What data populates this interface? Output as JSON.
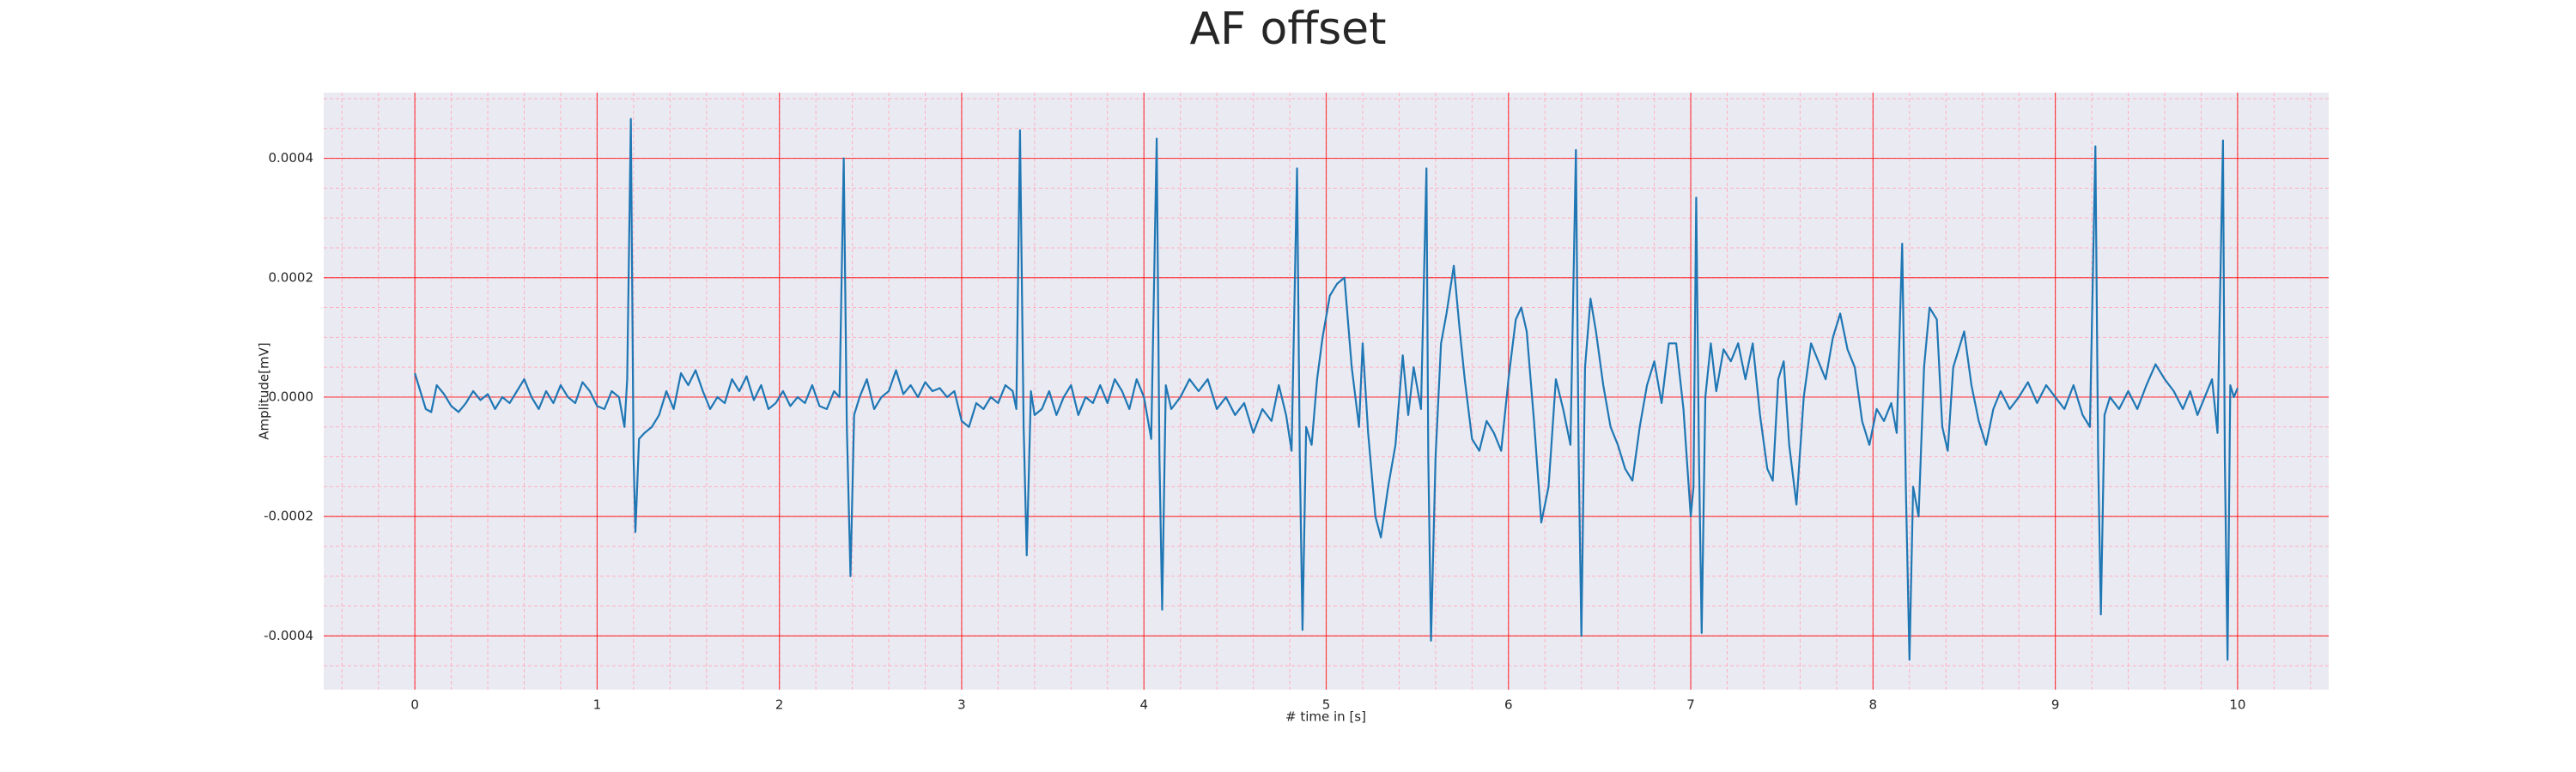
{
  "chart_data": {
    "type": "line",
    "title": "AF offset",
    "xlabel": "# time in [s]",
    "ylabel": "Amplitude[mV]",
    "xlim": [
      -0.5,
      10.5
    ],
    "ylim": [
      -0.00049,
      0.00051
    ],
    "xticks": [
      0,
      1,
      2,
      3,
      4,
      5,
      6,
      7,
      8,
      9,
      10
    ],
    "yticks": [
      -0.0004,
      -0.0002,
      {
        "value": 0,
        "label": "0.0000"
      },
      0.0002,
      0.0004
    ],
    "x_minor_ticks": [
      -0.4,
      -0.2,
      0,
      0.2,
      0.4,
      0.6,
      0.8,
      1,
      1.2,
      1.4,
      1.6,
      1.8,
      2,
      2.2,
      2.4,
      2.6,
      2.8,
      3,
      3.2,
      3.4,
      3.6,
      3.8,
      4,
      4.2,
      4.4,
      4.6,
      4.8,
      5,
      5.2,
      5.4,
      5.6,
      5.8,
      6,
      6.2,
      6.4,
      6.6,
      6.8,
      7,
      7.2,
      7.4,
      7.6,
      7.8,
      8,
      8.2,
      8.4,
      8.6,
      8.8,
      9,
      9.2,
      9.4,
      9.6,
      9.8,
      10,
      10.2,
      10.4
    ],
    "y_minor_ticks": [
      -0.00045,
      -0.0004,
      -0.00035,
      -0.0003,
      -0.00025,
      -0.0002,
      -0.00015,
      -0.0001,
      -5e-05,
      0,
      5e-05,
      0.0001,
      0.00015,
      0.0002,
      0.00025,
      0.0003,
      0.00035,
      0.0004,
      0.00045,
      0.0005
    ],
    "grid": true,
    "grid_color": "#ff0000",
    "minor_grid_color": "#ffb0c0",
    "background": "#eaeaf2",
    "color": "#1f77b4",
    "x": [
      0,
      0.03,
      0.06,
      0.09,
      0.12,
      0.16,
      0.2,
      0.24,
      0.28,
      0.32,
      0.36,
      0.4,
      0.44,
      0.48,
      0.52,
      0.56,
      0.6,
      0.64,
      0.68,
      0.72,
      0.76,
      0.8,
      0.84,
      0.88,
      0.92,
      0.96,
      1,
      1.04,
      1.08,
      1.12,
      1.15,
      1.165,
      1.185,
      1.2,
      1.21,
      1.23,
      1.26,
      1.3,
      1.34,
      1.38,
      1.42,
      1.46,
      1.5,
      1.54,
      1.58,
      1.62,
      1.66,
      1.7,
      1.74,
      1.78,
      1.82,
      1.86,
      1.9,
      1.94,
      1.98,
      2.02,
      2.06,
      2.1,
      2.14,
      2.18,
      2.22,
      2.26,
      2.3,
      2.33,
      2.353,
      2.37,
      2.39,
      2.41,
      2.44,
      2.48,
      2.52,
      2.56,
      2.6,
      2.64,
      2.68,
      2.72,
      2.76,
      2.8,
      2.84,
      2.88,
      2.92,
      2.96,
      3,
      3.04,
      3.08,
      3.12,
      3.16,
      3.2,
      3.24,
      3.28,
      3.3,
      3.32,
      3.34,
      3.357,
      3.38,
      3.4,
      3.44,
      3.48,
      3.52,
      3.56,
      3.6,
      3.64,
      3.68,
      3.72,
      3.76,
      3.8,
      3.84,
      3.88,
      3.92,
      3.96,
      4,
      4.04,
      4.07,
      4.085,
      4.1,
      4.12,
      4.15,
      4.2,
      4.25,
      4.3,
      4.35,
      4.4,
      4.45,
      4.5,
      4.55,
      4.6,
      4.65,
      4.7,
      4.74,
      4.78,
      4.81,
      4.84,
      4.855,
      4.87,
      4.89,
      4.92,
      4.95,
      4.98,
      5.02,
      5.06,
      5.1,
      5.14,
      5.18,
      5.2,
      5.23,
      5.27,
      5.3,
      5.34,
      5.38,
      5.42,
      5.45,
      5.48,
      5.52,
      5.55,
      5.56,
      5.575,
      5.6,
      5.63,
      5.66,
      5.7,
      5.73,
      5.76,
      5.8,
      5.84,
      5.88,
      5.92,
      5.96,
      6,
      6.04,
      6.07,
      6.1,
      6.14,
      6.18,
      6.22,
      6.26,
      6.3,
      6.34,
      6.37,
      6.385,
      6.4,
      6.42,
      6.45,
      6.48,
      6.52,
      6.56,
      6.6,
      6.64,
      6.68,
      6.72,
      6.76,
      6.8,
      6.84,
      6.88,
      6.92,
      6.96,
      7,
      7.015,
      7.03,
      7.045,
      7.06,
      7.08,
      7.11,
      7.14,
      7.18,
      7.22,
      7.26,
      7.3,
      7.34,
      7.38,
      7.42,
      7.45,
      7.48,
      7.51,
      7.54,
      7.58,
      7.62,
      7.66,
      7.7,
      7.74,
      7.78,
      7.82,
      7.86,
      7.9,
      7.94,
      7.98,
      8.02,
      8.06,
      8.1,
      8.13,
      8.16,
      8.18,
      8.2,
      8.22,
      8.25,
      8.28,
      8.31,
      8.35,
      8.38,
      8.41,
      8.44,
      8.47,
      8.5,
      8.54,
      8.58,
      8.62,
      8.66,
      8.7,
      8.75,
      8.8,
      8.85,
      8.9,
      8.95,
      9,
      9.05,
      9.1,
      9.15,
      9.19,
      9.22,
      9.235,
      9.25,
      9.27,
      9.3,
      9.35,
      9.4,
      9.45,
      9.5,
      9.55,
      9.6,
      9.65,
      9.7,
      9.74,
      9.78,
      9.82,
      9.86,
      9.89,
      9.92,
      9.93,
      9.945,
      9.96,
      9.98,
      10
    ],
    "values": [
      4e-05,
      1e-05,
      -2e-05,
      -2.5e-05,
      2e-05,
      5e-06,
      -1.5e-05,
      -2.5e-05,
      -1e-05,
      1e-05,
      -5e-06,
      5e-06,
      -2e-05,
      0,
      -1e-05,
      1e-05,
      3e-05,
      0,
      -2e-05,
      1e-05,
      -1e-05,
      2e-05,
      0,
      -1e-05,
      2.5e-05,
      1e-05,
      -1.5e-05,
      -2e-05,
      1e-05,
      0,
      -5e-05,
      3e-05,
      0.000466,
      -0.0001,
      -0.000226,
      -7e-05,
      -6e-05,
      -5e-05,
      -3e-05,
      1e-05,
      -2e-05,
      4e-05,
      2e-05,
      4.5e-05,
      1e-05,
      -2e-05,
      0,
      -1e-05,
      3e-05,
      1e-05,
      3.5e-05,
      -5e-06,
      2e-05,
      -2e-05,
      -1e-05,
      1e-05,
      -1.5e-05,
      0,
      -1e-05,
      2e-05,
      -1.5e-05,
      -2e-05,
      1e-05,
      0,
      0.0004,
      -5e-05,
      -0.0003,
      -3e-05,
      0,
      3e-05,
      -2e-05,
      0,
      1e-05,
      4.5e-05,
      5e-06,
      2e-05,
      0,
      2.5e-05,
      1e-05,
      1.5e-05,
      0,
      1e-05,
      -4e-05,
      -5e-05,
      -1e-05,
      -2e-05,
      0,
      -1e-05,
      2e-05,
      1e-05,
      -2e-05,
      0.000447,
      -5e-05,
      -0.000265,
      1e-05,
      -3e-05,
      -2e-05,
      1e-05,
      -3e-05,
      0,
      2e-05,
      -3e-05,
      0,
      -1e-05,
      2e-05,
      -1e-05,
      3e-05,
      1e-05,
      -2e-05,
      3e-05,
      0,
      -7e-05,
      0.000433,
      -0.0001,
      -0.000356,
      2e-05,
      -2e-05,
      0,
      3e-05,
      1e-05,
      3e-05,
      -2e-05,
      0,
      -3e-05,
      -1e-05,
      -6e-05,
      -2e-05,
      -4e-05,
      2e-05,
      -3e-05,
      -9e-05,
      0.000383,
      -0.0001,
      -0.00039,
      -5e-05,
      -8e-05,
      3e-05,
      0.0001,
      0.00017,
      0.00019,
      0.0002,
      5e-05,
      -5e-05,
      9e-05,
      -6e-05,
      -0.0002,
      -0.000235,
      -0.00015,
      -8e-05,
      7e-05,
      -3e-05,
      5e-05,
      -2e-05,
      0.000383,
      -0.0001,
      -0.000408,
      -0.0001,
      9e-05,
      0.00014,
      0.00022,
      0.00012,
      3e-05,
      -7e-05,
      -9e-05,
      -4e-05,
      -6e-05,
      -9e-05,
      3e-05,
      0.00013,
      0.00015,
      0.00011,
      -4e-05,
      -0.00021,
      -0.00015,
      3e-05,
      -2e-05,
      -8e-05,
      0.000414,
      -0.0001,
      -0.0004,
      5e-05,
      0.000165,
      0.00011,
      2e-05,
      -5e-05,
      -8e-05,
      -0.00012,
      -0.00014,
      -5e-05,
      2e-05,
      6e-05,
      -1e-05,
      9e-05,
      9e-05,
      -2e-05,
      -0.0002,
      -0.00015,
      0.000334,
      -0.0001,
      -0.000395,
      0,
      9e-05,
      1e-05,
      8e-05,
      6e-05,
      9e-05,
      3e-05,
      9e-05,
      -3e-05,
      -0.00012,
      -0.00014,
      3e-05,
      6e-05,
      -8e-05,
      -0.00018,
      0,
      9e-05,
      6e-05,
      3e-05,
      0.0001,
      0.00014,
      8e-05,
      5e-05,
      -4e-05,
      -8e-05,
      -2e-05,
      -4e-05,
      -1e-05,
      -6e-05,
      0.000257,
      -0.00015,
      -0.00044,
      -0.00015,
      -0.0002,
      5e-05,
      0.00015,
      0.00013,
      -5e-05,
      -9e-05,
      5e-05,
      8e-05,
      0.00011,
      2e-05,
      -4e-05,
      -8e-05,
      -2e-05,
      1e-05,
      -2e-05,
      0,
      2.5e-05,
      -1e-05,
      2e-05,
      0,
      -2e-05,
      2e-05,
      -3e-05,
      -5e-05,
      0.00042,
      -0.0001,
      -0.000364,
      -3e-05,
      0,
      -2e-05,
      1e-05,
      -2e-05,
      2e-05,
      5.5e-05,
      3e-05,
      1e-05,
      -2e-05,
      1e-05,
      -3e-05,
      0,
      3e-05,
      -6e-05,
      0.00043,
      -0.0001,
      -0.00044,
      2e-05,
      0,
      1.5e-05
    ]
  }
}
